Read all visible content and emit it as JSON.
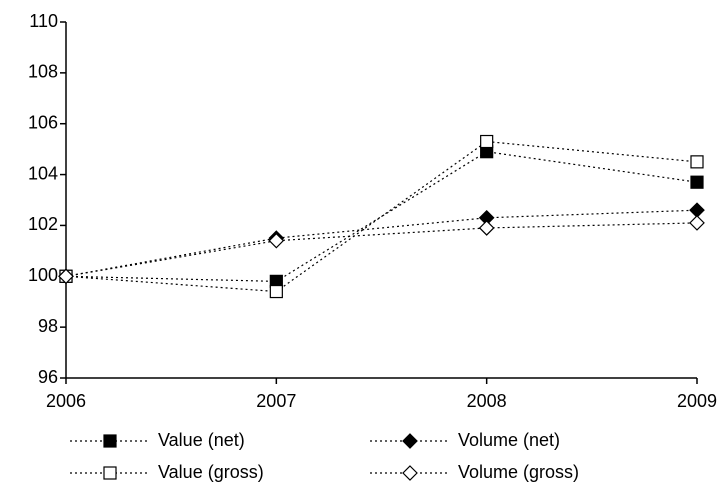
{
  "chart_data": {
    "type": "line",
    "x": [
      2006,
      2007,
      2008,
      2009
    ],
    "xlim": [
      2006,
      2009
    ],
    "xticks": [
      2006,
      2007,
      2008,
      2009
    ],
    "ylim": [
      96,
      110
    ],
    "yticks": [
      96,
      98,
      100,
      102,
      104,
      106,
      108,
      110
    ],
    "grid": false,
    "series": [
      {
        "name": "Value (net)",
        "color": "#000000",
        "marker": "square",
        "filled": true,
        "values": [
          100,
          99.8,
          104.9,
          103.7
        ]
      },
      {
        "name": "Volume (net)",
        "color": "#000000",
        "marker": "diamond",
        "filled": true,
        "values": [
          100,
          101.5,
          102.3,
          102.6
        ]
      },
      {
        "name": "Value (gross)",
        "color": "#000000",
        "marker": "square",
        "filled": false,
        "values": [
          100,
          99.4,
          105.3,
          104.5
        ]
      },
      {
        "name": "Volume (gross)",
        "color": "#000000",
        "marker": "diamond",
        "filled": false,
        "values": [
          100,
          101.4,
          101.9,
          102.1
        ]
      }
    ]
  }
}
